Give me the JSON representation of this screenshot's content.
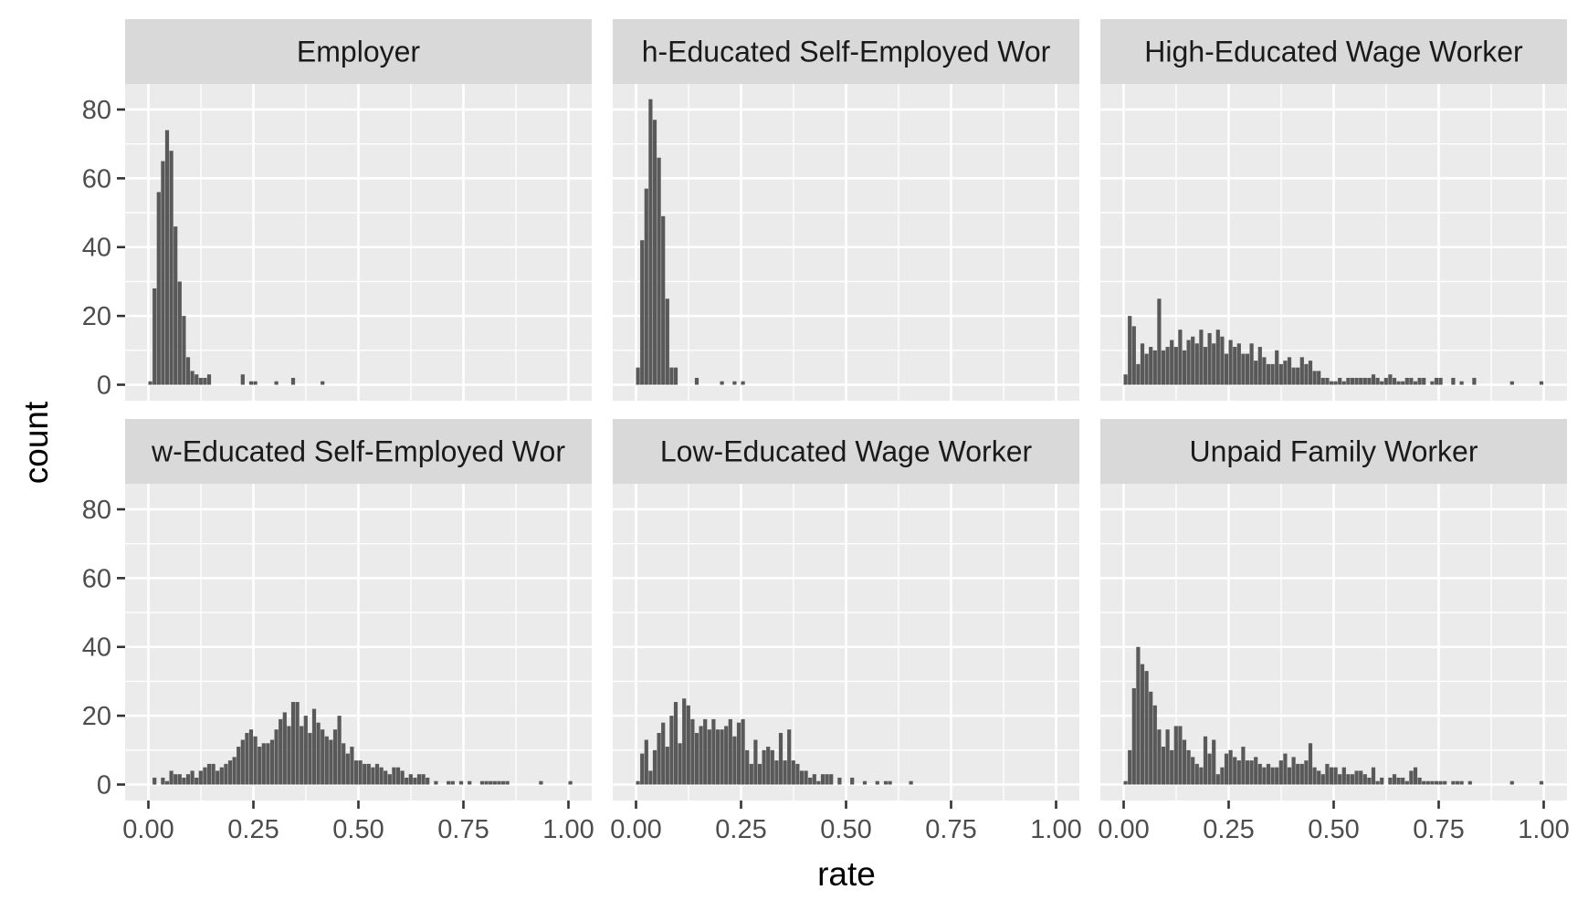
{
  "chart_data": {
    "type": "bar",
    "subtype": "faceted-histogram",
    "xlabel": "rate",
    "ylabel": "count",
    "xlim": [
      0,
      1
    ],
    "ylim": [
      0,
      87
    ],
    "x_ticks": [
      "0.00",
      "0.25",
      "0.50",
      "0.75",
      "1.00"
    ],
    "y_ticks": [
      "0",
      "20",
      "40",
      "60",
      "80"
    ],
    "x_tick_values": [
      0,
      0.25,
      0.5,
      0.75,
      1.0
    ],
    "y_tick_values": [
      0,
      20,
      40,
      60,
      80
    ],
    "grid": true,
    "facet_layout": "2 rows x 3 columns",
    "bin_width": 0.01,
    "bin_start": 0.0,
    "panels": [
      {
        "name": "Employer",
        "label": "Employer",
        "values": [
          1,
          28,
          56,
          65,
          74,
          68,
          46,
          30,
          20,
          8,
          4,
          3,
          2,
          2,
          3,
          0,
          0,
          0,
          0,
          0,
          0,
          0,
          3,
          0,
          1,
          1,
          0,
          0,
          0,
          0,
          1,
          0,
          0,
          0,
          2,
          0,
          0,
          0,
          0,
          0,
          0,
          1
        ]
      },
      {
        "name": "High-Educated Self-Employed Worker",
        "label": "h-Educated Self-Employed Wor",
        "values": [
          5,
          42,
          57,
          83,
          77,
          66,
          49,
          25,
          5,
          5,
          0,
          0,
          0,
          0,
          2,
          0,
          0,
          0,
          0,
          0,
          1,
          0,
          0,
          1,
          0,
          1
        ]
      },
      {
        "name": "High-Educated Wage Worker",
        "label": "High-Educated Wage Worker",
        "values": [
          3,
          20,
          17,
          6,
          12,
          9,
          11,
          10,
          25,
          10,
          11,
          13,
          11,
          16,
          10,
          13,
          14,
          12,
          16,
          11,
          15,
          12,
          16,
          14,
          9,
          13,
          11,
          12,
          9,
          9,
          12,
          7,
          11,
          8,
          6,
          6,
          10,
          6,
          7,
          8,
          5,
          5,
          8,
          6,
          7,
          4,
          4,
          2,
          2,
          1,
          1,
          2,
          1,
          2,
          2,
          2,
          2,
          2,
          2,
          3,
          2,
          1,
          2,
          3,
          2,
          1,
          1,
          2,
          2,
          1,
          2,
          2,
          0,
          1,
          2,
          2,
          0,
          0,
          2,
          0,
          1,
          0,
          0,
          2,
          0,
          0,
          0,
          0,
          0,
          0,
          0,
          0,
          1,
          0,
          0,
          0,
          0,
          0,
          0,
          1
        ]
      },
      {
        "name": "Low-Educated Self-Employed Worker",
        "label": "w-Educated Self-Employed Wor",
        "values": [
          0,
          2,
          0,
          2,
          1,
          4,
          3,
          3,
          2,
          3,
          4,
          2,
          4,
          5,
          6,
          6,
          4,
          5,
          6,
          7,
          8,
          11,
          13,
          15,
          16,
          14,
          11,
          12,
          12,
          13,
          16,
          19,
          21,
          17,
          24,
          24,
          17,
          20,
          15,
          22,
          18,
          16,
          14,
          13,
          16,
          20,
          12,
          9,
          11,
          7,
          7,
          6,
          6,
          5,
          6,
          5,
          4,
          3,
          5,
          5,
          4,
          2,
          3,
          2,
          3,
          3,
          2,
          0,
          1,
          0,
          0,
          1,
          1,
          0,
          1,
          0,
          1,
          0,
          0,
          1,
          1,
          1,
          1,
          1,
          1,
          1,
          0,
          0,
          0,
          0,
          0,
          0,
          0,
          1,
          0,
          0,
          0,
          0,
          0,
          0,
          1
        ]
      },
      {
        "name": "Low-Educated Wage Worker",
        "label": "Low-Educated Wage Worker",
        "values": [
          1,
          9,
          13,
          4,
          10,
          15,
          18,
          11,
          20,
          24,
          12,
          25,
          23,
          19,
          15,
          17,
          19,
          16,
          19,
          16,
          16,
          17,
          19,
          14,
          18,
          19,
          10,
          6,
          13,
          6,
          10,
          11,
          10,
          7,
          15,
          7,
          16,
          7,
          6,
          4,
          4,
          2,
          3,
          1,
          3,
          3,
          3,
          0,
          2,
          0,
          0,
          2,
          0,
          0,
          1,
          0,
          0,
          1,
          0,
          1,
          1,
          0,
          0,
          0,
          0,
          1
        ]
      },
      {
        "name": "Unpaid Family Worker",
        "label": "Unpaid Family Worker",
        "values": [
          1,
          10,
          28,
          40,
          35,
          33,
          27,
          23,
          16,
          11,
          16,
          10,
          17,
          17,
          13,
          10,
          8,
          6,
          5,
          14,
          9,
          13,
          3,
          5,
          9,
          10,
          8,
          7,
          11,
          7,
          7,
          8,
          6,
          5,
          6,
          5,
          5,
          7,
          9,
          5,
          8,
          6,
          6,
          7,
          12,
          5,
          4,
          3,
          6,
          5,
          5,
          3,
          5,
          3,
          3,
          4,
          4,
          3,
          2,
          5,
          1,
          2,
          0,
          2,
          3,
          2,
          2,
          1,
          4,
          5,
          2,
          1,
          1,
          1,
          1,
          1,
          1,
          0,
          1,
          1,
          1,
          0,
          1,
          0,
          0,
          0,
          0,
          0,
          0,
          0,
          0,
          0,
          1,
          0,
          0,
          0,
          0,
          0,
          0,
          1
        ]
      }
    ]
  },
  "strips": {
    "employer": "Employer",
    "high_self": "h-Educated Self-Employed Wor",
    "high_wage": "High-Educated Wage Worker",
    "low_self": "w-Educated Self-Employed Wor",
    "low_wage": "Low-Educated Wage Worker",
    "unpaid": "Unpaid Family Worker"
  },
  "axes": {
    "x_title": "rate",
    "y_title": "count"
  }
}
